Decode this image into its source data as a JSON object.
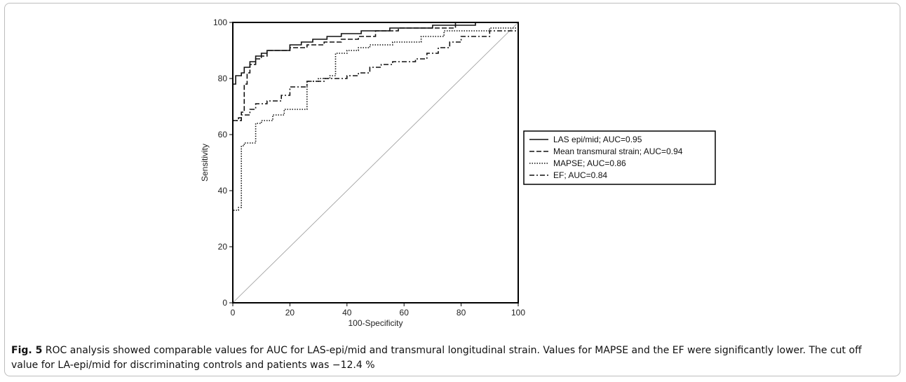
{
  "figure": {
    "label": "Fig. 5",
    "caption": "ROC analysis showed comparable values for AUC for LAS-epi/mid and transmural longitudinal strain. Values for MAPSE and the EF were significantly lower. The cut off value for LA-epi/mid for discriminating controls and patients was −12.4 %"
  },
  "chart_data": {
    "type": "line",
    "xlabel": "100-Specificity",
    "ylabel": "Sensitivity",
    "xlim": [
      0,
      100
    ],
    "ylim": [
      0,
      100
    ],
    "xticks": [
      0,
      20,
      40,
      60,
      80,
      100
    ],
    "yticks": [
      0,
      20,
      40,
      60,
      80,
      100
    ],
    "grid": false,
    "legend_position": "right",
    "reference_line": {
      "x": [
        0,
        100
      ],
      "y": [
        0,
        100
      ],
      "color": "#999999"
    },
    "series": [
      {
        "name": "LAS epi/mid; AUC=0.95",
        "dash": "solid",
        "x": [
          0,
          0,
          1,
          1,
          3,
          3,
          4,
          4,
          6,
          6,
          8,
          8,
          10,
          10,
          12,
          12,
          20,
          20,
          24,
          24,
          28,
          28,
          33,
          33,
          38,
          38,
          45,
          45,
          55,
          55,
          70,
          70,
          85,
          85,
          100
        ],
        "y": [
          0,
          78,
          78,
          81,
          81,
          82,
          82,
          84,
          84,
          86,
          86,
          88,
          88,
          89,
          89,
          90,
          90,
          92,
          92,
          93,
          93,
          94,
          94,
          95,
          95,
          96,
          96,
          97,
          97,
          98,
          98,
          99,
          99,
          100,
          100
        ]
      },
      {
        "name": "Mean transmural strain; AUC=0.94",
        "dash": "dashed",
        "x": [
          0,
          0,
          2,
          2,
          3,
          3,
          4,
          4,
          5,
          5,
          6,
          6,
          8,
          8,
          10,
          10,
          12,
          12,
          20,
          20,
          26,
          26,
          32,
          32,
          38,
          38,
          44,
          44,
          50,
          50,
          58,
          58,
          78,
          78,
          100
        ],
        "y": [
          0,
          65,
          65,
          66,
          66,
          68,
          68,
          78,
          78,
          82,
          82,
          85,
          85,
          87,
          87,
          88,
          88,
          90,
          90,
          91,
          91,
          92,
          92,
          93,
          93,
          94,
          94,
          95,
          95,
          97,
          97,
          98,
          98,
          100,
          100
        ]
      },
      {
        "name": "MAPSE; AUC=0.86",
        "dash": "dotted",
        "x": [
          0,
          0,
          2,
          2,
          3,
          3,
          4,
          4,
          8,
          8,
          10,
          10,
          14,
          14,
          18,
          18,
          26,
          26,
          30,
          30,
          34,
          34,
          36,
          36,
          40,
          40,
          44,
          44,
          48,
          48,
          56,
          56,
          66,
          66,
          74,
          74,
          90,
          90,
          100
        ],
        "y": [
          0,
          33,
          33,
          34,
          34,
          56,
          56,
          57,
          57,
          64,
          64,
          65,
          65,
          67,
          67,
          69,
          69,
          79,
          79,
          80,
          80,
          81,
          81,
          89,
          89,
          90,
          90,
          91,
          91,
          92,
          92,
          93,
          93,
          95,
          95,
          97,
          97,
          98,
          98
        ]
      },
      {
        "name": "EF; AUC=0.84",
        "dash": "dashdot",
        "x": [
          0,
          0,
          3,
          3,
          6,
          6,
          8,
          8,
          12,
          12,
          17,
          17,
          20,
          20,
          26,
          26,
          32,
          32,
          40,
          40,
          44,
          44,
          48,
          48,
          52,
          52,
          56,
          56,
          64,
          64,
          68,
          68,
          72,
          72,
          76,
          76,
          80,
          80,
          90,
          90,
          100
        ],
        "y": [
          0,
          65,
          65,
          67,
          67,
          69,
          69,
          71,
          71,
          72,
          72,
          74,
          74,
          77,
          77,
          79,
          79,
          80,
          80,
          81,
          81,
          82,
          82,
          84,
          84,
          85,
          85,
          86,
          86,
          87,
          87,
          89,
          89,
          91,
          91,
          93,
          93,
          95,
          95,
          97,
          97
        ]
      }
    ]
  }
}
